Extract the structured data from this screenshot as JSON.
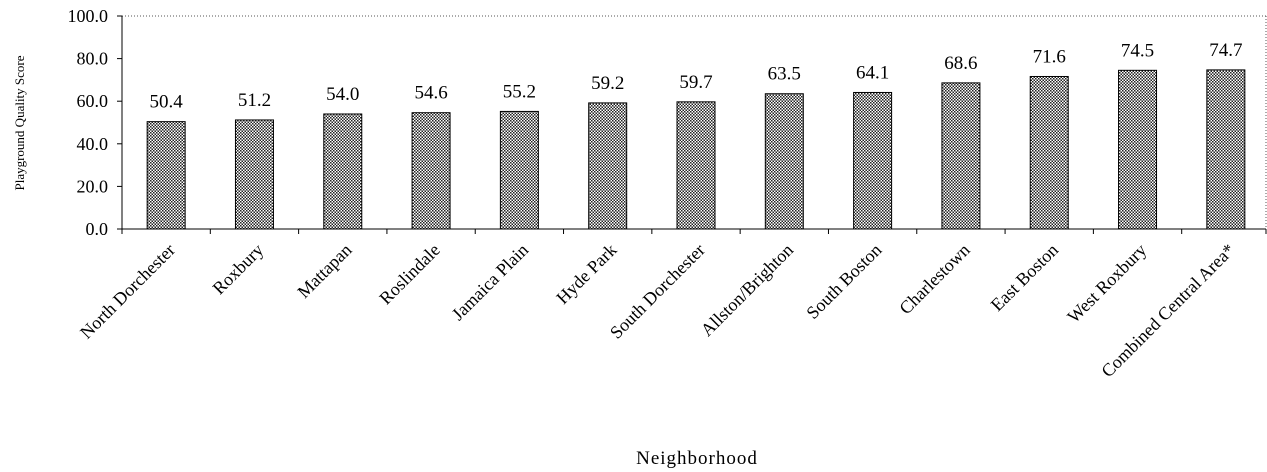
{
  "chart_data": {
    "type": "bar",
    "title": "",
    "xlabel": "Neighborhood",
    "ylabel": "Playground Quality Score",
    "ylim": [
      0,
      100
    ],
    "yticks": [
      "0.0",
      "20.0",
      "40.0",
      "60.0",
      "80.0",
      "100.0"
    ],
    "grid": false,
    "legend": "none",
    "categories": [
      "North Dorchester",
      "Roxbury",
      "Mattapan",
      "Roslindale",
      "Jamaica Plain",
      "Hyde Park",
      "South Dorchester",
      "Allston/Brighton",
      "South Boston",
      "Charlestown",
      "East Boston",
      "West Roxbury",
      "Combined Central Area*"
    ],
    "values": [
      50.4,
      51.2,
      54.0,
      54.6,
      55.2,
      59.2,
      59.7,
      63.5,
      64.1,
      68.6,
      71.6,
      74.5,
      74.7
    ],
    "value_labels": [
      "50.4",
      "51.2",
      "54.0",
      "54.6",
      "55.2",
      "59.2",
      "59.7",
      "63.5",
      "64.1",
      "68.6",
      "71.6",
      "74.5",
      "74.7"
    ],
    "bar_fill": "crosshatch",
    "bar_color": "#000000"
  }
}
